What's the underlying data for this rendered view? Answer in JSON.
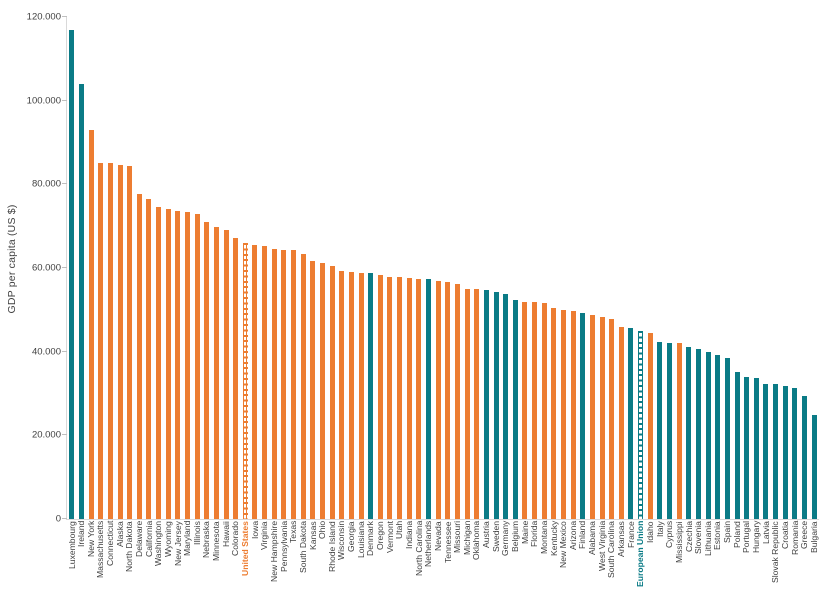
{
  "chart_data": {
    "type": "bar",
    "title": "",
    "xlabel": "",
    "ylabel": "GDP per capita (US $)",
    "ylim": [
      0,
      120000
    ],
    "grid": false,
    "legend": "none",
    "colors": {
      "us_bar": "#ED7D31",
      "eu_bar": "#0A7B86",
      "label_text": "#3F3F3F",
      "tick_text": "#404040",
      "axis_line": "#D9D9D9",
      "tick_mark": "#BFBFBF"
    },
    "yticks": [
      {
        "value": 0,
        "label": "0"
      },
      {
        "value": 20000,
        "label": "20.000"
      },
      {
        "value": 40000,
        "label": "40.000"
      },
      {
        "value": 60000,
        "label": "60.000"
      },
      {
        "value": 80000,
        "label": "80.000"
      },
      {
        "value": 100000,
        "label": "100.000"
      },
      {
        "value": 120000,
        "label": "120.000"
      }
    ],
    "items": [
      {
        "label": "Luxembourg",
        "value": 117000,
        "group": "eu",
        "style": "solid"
      },
      {
        "label": "Ireland",
        "value": 104000,
        "group": "eu",
        "style": "solid"
      },
      {
        "label": "New York",
        "value": 93100,
        "group": "us",
        "style": "solid"
      },
      {
        "label": "Massachusetts",
        "value": 85200,
        "group": "us",
        "style": "solid"
      },
      {
        "label": "Connecticut",
        "value": 85000,
        "group": "us",
        "style": "solid"
      },
      {
        "label": "Alaska",
        "value": 84600,
        "group": "us",
        "style": "solid"
      },
      {
        "label": "North Dakota",
        "value": 84400,
        "group": "us",
        "style": "solid"
      },
      {
        "label": "Delaware",
        "value": 77800,
        "group": "us",
        "style": "solid"
      },
      {
        "label": "California",
        "value": 76400,
        "group": "us",
        "style": "solid"
      },
      {
        "label": "Washington",
        "value": 74500,
        "group": "us",
        "style": "solid"
      },
      {
        "label": "Wyoming",
        "value": 74100,
        "group": "us",
        "style": "solid"
      },
      {
        "label": "New Jersey",
        "value": 73600,
        "group": "us",
        "style": "solid"
      },
      {
        "label": "Maryland",
        "value": 73300,
        "group": "us",
        "style": "solid"
      },
      {
        "label": "Illinois",
        "value": 73000,
        "group": "us",
        "style": "solid"
      },
      {
        "label": "Nebraska",
        "value": 71100,
        "group": "us",
        "style": "solid"
      },
      {
        "label": "Minnesota",
        "value": 69700,
        "group": "us",
        "style": "solid"
      },
      {
        "label": "Hawaii",
        "value": 69100,
        "group": "us",
        "style": "solid"
      },
      {
        "label": "Colorado",
        "value": 67100,
        "group": "us",
        "style": "solid"
      },
      {
        "label": "United States",
        "value": 66000,
        "group": "us",
        "style": "dotted"
      },
      {
        "label": "Iowa",
        "value": 65500,
        "group": "us",
        "style": "solid"
      },
      {
        "label": "Virginia",
        "value": 65200,
        "group": "us",
        "style": "solid"
      },
      {
        "label": "New Hampshire",
        "value": 64600,
        "group": "us",
        "style": "solid"
      },
      {
        "label": "Pennsylvania",
        "value": 64400,
        "group": "us",
        "style": "solid"
      },
      {
        "label": "Texas",
        "value": 64300,
        "group": "us",
        "style": "solid"
      },
      {
        "label": "South Dakota",
        "value": 63300,
        "group": "us",
        "style": "solid"
      },
      {
        "label": "Kansas",
        "value": 61700,
        "group": "us",
        "style": "solid"
      },
      {
        "label": "Ohio",
        "value": 61300,
        "group": "us",
        "style": "solid"
      },
      {
        "label": "Rhode Island",
        "value": 60500,
        "group": "us",
        "style": "solid"
      },
      {
        "label": "Wisconsin",
        "value": 59300,
        "group": "us",
        "style": "solid"
      },
      {
        "label": "Georgia",
        "value": 59000,
        "group": "us",
        "style": "solid"
      },
      {
        "label": "Louisiana",
        "value": 58900,
        "group": "us",
        "style": "solid"
      },
      {
        "label": "Denmark",
        "value": 58700,
        "group": "eu",
        "style": "solid"
      },
      {
        "label": "Oregon",
        "value": 58300,
        "group": "us",
        "style": "solid"
      },
      {
        "label": "Vermont",
        "value": 57900,
        "group": "us",
        "style": "solid"
      },
      {
        "label": "Utah",
        "value": 57800,
        "group": "us",
        "style": "solid"
      },
      {
        "label": "Indiana",
        "value": 57700,
        "group": "us",
        "style": "solid"
      },
      {
        "label": "North Carolina",
        "value": 57500,
        "group": "us",
        "style": "solid"
      },
      {
        "label": "Netherlands",
        "value": 57300,
        "group": "eu",
        "style": "solid"
      },
      {
        "label": "Nevada",
        "value": 57000,
        "group": "us",
        "style": "solid"
      },
      {
        "label": "Tennessee",
        "value": 56700,
        "group": "us",
        "style": "solid"
      },
      {
        "label": "Missouri",
        "value": 56100,
        "group": "us",
        "style": "solid"
      },
      {
        "label": "Michigan",
        "value": 55100,
        "group": "us",
        "style": "solid"
      },
      {
        "label": "Oklahoma",
        "value": 54900,
        "group": "us",
        "style": "solid"
      },
      {
        "label": "Austria",
        "value": 54700,
        "group": "eu",
        "style": "solid"
      },
      {
        "label": "Sweden",
        "value": 54300,
        "group": "eu",
        "style": "solid"
      },
      {
        "label": "Germany",
        "value": 53800,
        "group": "eu",
        "style": "solid"
      },
      {
        "label": "Belgium",
        "value": 52300,
        "group": "eu",
        "style": "solid"
      },
      {
        "label": "Maine",
        "value": 52000,
        "group": "us",
        "style": "solid"
      },
      {
        "label": "Florida",
        "value": 51900,
        "group": "us",
        "style": "solid"
      },
      {
        "label": "Montana",
        "value": 51700,
        "group": "us",
        "style": "solid"
      },
      {
        "label": "Kentucky",
        "value": 50400,
        "group": "us",
        "style": "solid"
      },
      {
        "label": "New Mexico",
        "value": 50000,
        "group": "us",
        "style": "solid"
      },
      {
        "label": "Arizona",
        "value": 49800,
        "group": "us",
        "style": "solid"
      },
      {
        "label": "Finland",
        "value": 49300,
        "group": "eu",
        "style": "solid"
      },
      {
        "label": "Alabama",
        "value": 48800,
        "group": "us",
        "style": "solid"
      },
      {
        "label": "West Virginia",
        "value": 48400,
        "group": "us",
        "style": "solid"
      },
      {
        "label": "South Carolina",
        "value": 47800,
        "group": "us",
        "style": "solid"
      },
      {
        "label": "Arkansas",
        "value": 45800,
        "group": "us",
        "style": "solid"
      },
      {
        "label": "France",
        "value": 45600,
        "group": "eu",
        "style": "solid"
      },
      {
        "label": "European Union",
        "value": 44900,
        "group": "eu",
        "style": "dotted"
      },
      {
        "label": "Idaho",
        "value": 44400,
        "group": "us",
        "style": "solid"
      },
      {
        "label": "Italy",
        "value": 42300,
        "group": "eu",
        "style": "solid"
      },
      {
        "label": "Cyprus",
        "value": 42200,
        "group": "eu",
        "style": "solid"
      },
      {
        "label": "Mississippi",
        "value": 42000,
        "group": "us",
        "style": "solid"
      },
      {
        "label": "Czechia",
        "value": 41200,
        "group": "eu",
        "style": "solid"
      },
      {
        "label": "Slovenia",
        "value": 40600,
        "group": "eu",
        "style": "solid"
      },
      {
        "label": "Lithuania",
        "value": 40000,
        "group": "eu",
        "style": "solid"
      },
      {
        "label": "Estonia",
        "value": 39200,
        "group": "eu",
        "style": "solid"
      },
      {
        "label": "Spain",
        "value": 38600,
        "group": "eu",
        "style": "solid"
      },
      {
        "label": "Poland",
        "value": 35200,
        "group": "eu",
        "style": "solid"
      },
      {
        "label": "Portugal",
        "value": 34000,
        "group": "eu",
        "style": "solid"
      },
      {
        "label": "Hungary",
        "value": 33600,
        "group": "eu",
        "style": "solid"
      },
      {
        "label": "Latvia",
        "value": 32400,
        "group": "eu",
        "style": "solid"
      },
      {
        "label": "Slovak Republic",
        "value": 32200,
        "group": "eu",
        "style": "solid"
      },
      {
        "label": "Croatia",
        "value": 31900,
        "group": "eu",
        "style": "solid"
      },
      {
        "label": "Romania",
        "value": 31400,
        "group": "eu",
        "style": "solid"
      },
      {
        "label": "Greece",
        "value": 29400,
        "group": "eu",
        "style": "solid"
      },
      {
        "label": "Bulgaria",
        "value": 24900,
        "group": "eu",
        "style": "solid"
      }
    ]
  }
}
